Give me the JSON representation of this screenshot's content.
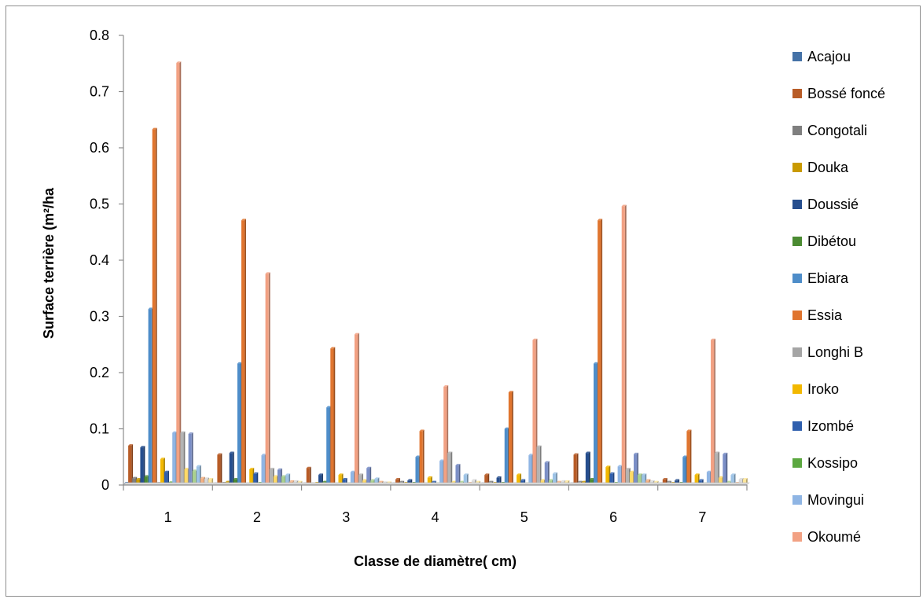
{
  "chart_data": {
    "type": "bar",
    "xlabel": "Classe de diamètre( cm)",
    "ylabel": "Surface terrière (m²/ha",
    "ylim": [
      0,
      0.8
    ],
    "yticks": [
      "0",
      "0.1",
      "0.2",
      "0.3",
      "0.4",
      "0.5",
      "0.6",
      "0.7",
      "0.8"
    ],
    "grid": false,
    "legend_position": "right",
    "categories": [
      "1",
      "2",
      "3",
      "4",
      "5",
      "6",
      "7"
    ],
    "series": [
      {
        "name": "Acajou",
        "color": "#4572a7",
        "values": [
          0.003,
          0.002,
          0.002,
          0.002,
          0.002,
          0.002,
          0.002
        ]
      },
      {
        "name": "Bossé foncé",
        "color": "#b85c27",
        "values": [
          0.07,
          0.054,
          0.03,
          0.01,
          0.018,
          0.054,
          0.01
        ]
      },
      {
        "name": "Congotali",
        "color": "#7f7f7f",
        "values": [
          0.012,
          0.003,
          0.002,
          0.005,
          0.005,
          0.005,
          0.005
        ]
      },
      {
        "name": "Douka",
        "color": "#c99a00",
        "values": [
          0.01,
          0.005,
          0.003,
          0.003,
          0.003,
          0.005,
          0.003
        ]
      },
      {
        "name": "Doussié",
        "color": "#264e8e",
        "values": [
          0.067,
          0.057,
          0.018,
          0.008,
          0.013,
          0.057,
          0.008
        ]
      },
      {
        "name": "Dibétou",
        "color": "#4b8b32",
        "values": [
          0.015,
          0.01,
          0.005,
          0.003,
          0.003,
          0.01,
          0.003
        ]
      },
      {
        "name": "Ebiara",
        "color": "#4e8dc9",
        "values": [
          0.313,
          0.216,
          0.138,
          0.05,
          0.1,
          0.216,
          0.05
        ]
      },
      {
        "name": "Essia",
        "color": "#e0752f",
        "values": [
          0.633,
          0.471,
          0.243,
          0.096,
          0.165,
          0.471,
          0.096
        ]
      },
      {
        "name": "Longhi B",
        "color": "#a5a5a5",
        "values": [
          0.003,
          0.002,
          0.002,
          0.002,
          0.002,
          0.002,
          0.002
        ]
      },
      {
        "name": "Iroko",
        "color": "#f2b800",
        "values": [
          0.046,
          0.028,
          0.018,
          0.013,
          0.018,
          0.032,
          0.018
        ]
      },
      {
        "name": "Izombé",
        "color": "#2f5fae",
        "values": [
          0.023,
          0.02,
          0.01,
          0.005,
          0.008,
          0.02,
          0.008
        ]
      },
      {
        "name": "Kossipo",
        "color": "#5ca840",
        "values": [
          0.004,
          0.003,
          0.002,
          0.002,
          0.002,
          0.003,
          0.002
        ]
      },
      {
        "name": "Movingui",
        "color": "#8fb5e4",
        "values": [
          0.093,
          0.053,
          0.023,
          0.043,
          0.053,
          0.033,
          0.023
        ]
      },
      {
        "name": "Okoumé",
        "color": "#f2a183",
        "values": [
          0.751,
          0.376,
          0.268,
          0.175,
          0.258,
          0.496,
          0.258
        ]
      },
      {
        "name": "",
        "color": "#b3b3b3",
        "values": [
          0.093,
          0.028,
          0.018,
          0.057,
          0.068,
          0.028,
          0.057
        ]
      },
      {
        "name": "",
        "color": "#ffd966",
        "values": [
          0.028,
          0.015,
          0.008,
          0.005,
          0.008,
          0.023,
          0.013
        ]
      },
      {
        "name": "",
        "color": "#7b8fc7",
        "values": [
          0.091,
          0.027,
          0.03,
          0.035,
          0.04,
          0.055,
          0.055
        ]
      },
      {
        "name": "",
        "color": "#a9d18e",
        "values": [
          0.025,
          0.015,
          0.008,
          0.005,
          0.008,
          0.018,
          0.005
        ]
      },
      {
        "name": "",
        "color": "#9dc3e6",
        "values": [
          0.033,
          0.018,
          0.011,
          0.018,
          0.02,
          0.018,
          0.018
        ]
      },
      {
        "name": "",
        "color": "#f4b183",
        "values": [
          0.012,
          0.006,
          0.005,
          0.003,
          0.005,
          0.008,
          0.003
        ]
      },
      {
        "name": "",
        "color": "#d9d9d9",
        "values": [
          0.011,
          0.006,
          0.004,
          0.008,
          0.006,
          0.006,
          0.01
        ]
      },
      {
        "name": "",
        "color": "#ffe699",
        "values": [
          0.01,
          0.005,
          0.004,
          0.005,
          0.006,
          0.005,
          0.01
        ]
      }
    ]
  }
}
